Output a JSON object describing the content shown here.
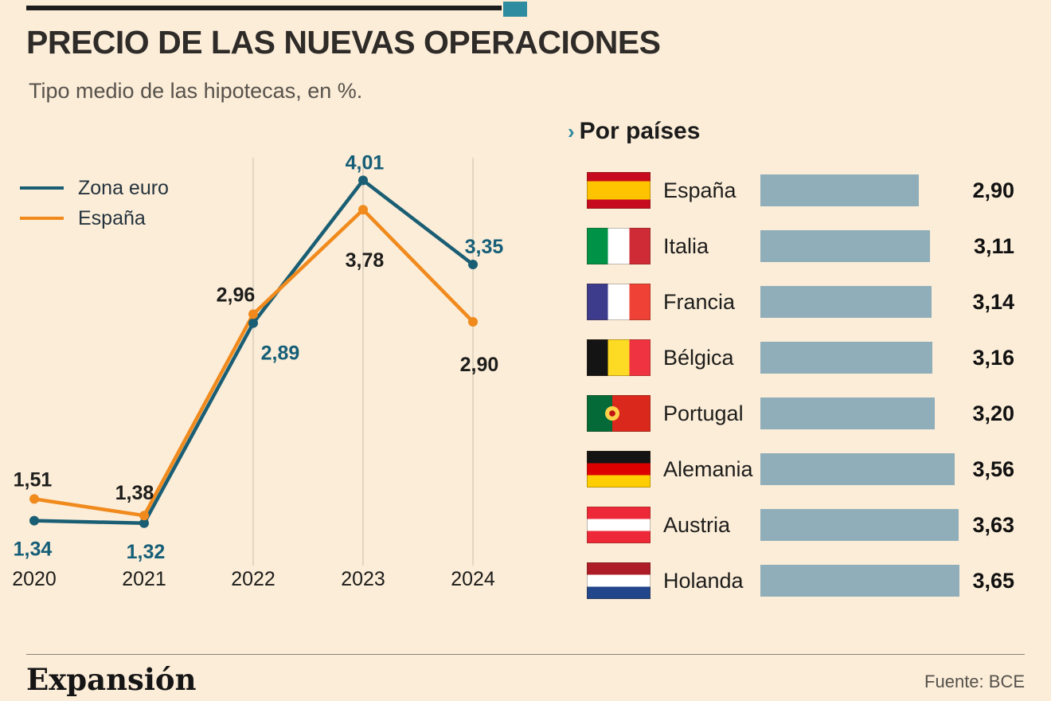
{
  "header": {
    "title": "PRECIO DE LAS NUEVAS OPERACIONES",
    "subtitle": "Tipo medio de las hipotecas, en %."
  },
  "colors": {
    "background": "#FCEDD8",
    "zona_euro": "#1A5E74",
    "espana": "#F08A1D",
    "bar": "#8FAEBA",
    "accent_teal": "#2E8CA0",
    "label_dark": "#1D1D1B"
  },
  "chart_data": [
    {
      "type": "line",
      "title": "Tipo medio de las hipotecas, en %.",
      "x": [
        "2020",
        "2021",
        "2022",
        "2023",
        "2024"
      ],
      "series": [
        {
          "name": "Zona euro",
          "color": "#1A5E74",
          "label_color": "#155E78",
          "values": [
            1.34,
            1.32,
            2.89,
            4.01,
            3.35
          ],
          "labels": [
            "1,34",
            "1,32",
            "2,89",
            "4,01",
            "3,35"
          ]
        },
        {
          "name": "España",
          "color": "#F08A1D",
          "label_color": "#1D1D1B",
          "values": [
            1.51,
            1.38,
            2.96,
            3.78,
            2.9
          ],
          "labels": [
            "1,51",
            "1,38",
            "2,96",
            "3,78",
            "2,90"
          ]
        }
      ],
      "ylim": [
        1.0,
        4.3
      ],
      "grid": "vertical-gridlines-at-2022-2023-2024",
      "legend_position": "top-left"
    },
    {
      "type": "bar",
      "title": "Por países",
      "orientation": "horizontal",
      "categories": [
        "España",
        "Italia",
        "Francia",
        "Bélgica",
        "Portugal",
        "Alemania",
        "Austria",
        "Holanda"
      ],
      "values": [
        2.9,
        3.11,
        3.14,
        3.16,
        3.2,
        3.56,
        3.63,
        3.65
      ],
      "value_labels": [
        "2,90",
        "3,11",
        "3,14",
        "3,16",
        "3,20",
        "3,56",
        "3,63",
        "3,65"
      ],
      "flags": [
        "es",
        "it",
        "fr",
        "be",
        "pt",
        "de",
        "at",
        "nl"
      ],
      "xlim": [
        0,
        3.65
      ]
    }
  ],
  "por_paises": {
    "arrow": "›",
    "heading": "Por países"
  },
  "footer": {
    "brand": "Expansión",
    "source": "Fuente: BCE"
  }
}
